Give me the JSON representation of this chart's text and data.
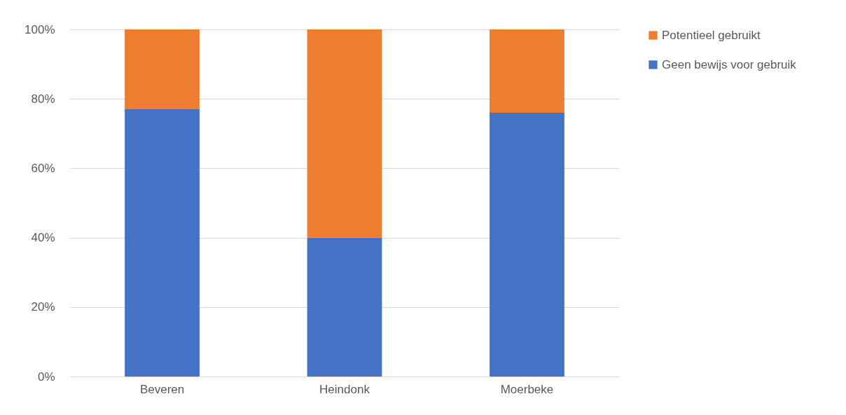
{
  "chart_data": {
    "type": "bar",
    "stacked": true,
    "categories": [
      "Beveren",
      "Heindonk",
      "Moerbeke"
    ],
    "series": [
      {
        "name": "Geen bewijs voor gebruik",
        "color": "#4472c4",
        "values": [
          77,
          40,
          76
        ]
      },
      {
        "name": "Potentieel gebruikt",
        "color": "#ed7d31",
        "values": [
          23,
          60,
          24
        ]
      }
    ],
    "ylim": [
      0,
      100
    ],
    "yticks": [
      {
        "value": 0,
        "label": "0%"
      },
      {
        "value": 20,
        "label": "20%"
      },
      {
        "value": 40,
        "label": "40%"
      },
      {
        "value": 60,
        "label": "60%"
      },
      {
        "value": 80,
        "label": "80%"
      },
      {
        "value": 100,
        "label": "100%"
      }
    ],
    "grid": "y",
    "legend": "right"
  }
}
